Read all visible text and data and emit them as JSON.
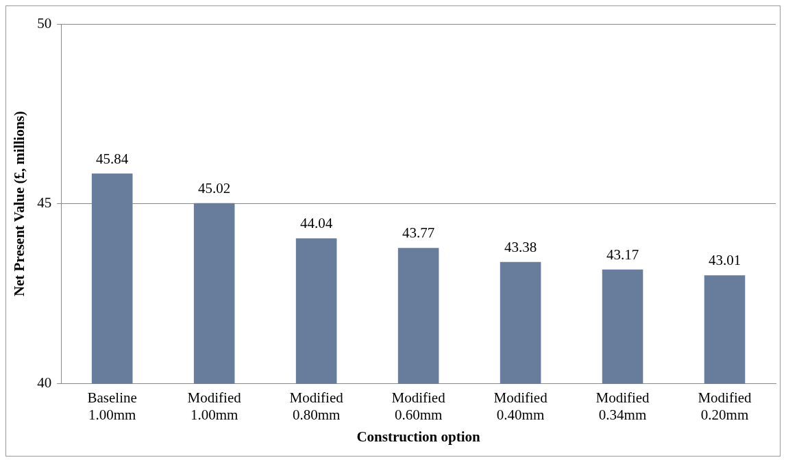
{
  "chart_data": {
    "type": "bar",
    "xlabel": "Construction option",
    "ylabel": "Net Present Value (£, millions)",
    "categories": [
      "Baseline 1.00mm",
      "Modified 1.00mm",
      "Modified 0.80mm",
      "Modified 0.60mm",
      "Modified 0.40mm",
      "Modified 0.34mm",
      "Modified 0.20mm"
    ],
    "values": [
      45.84,
      45.02,
      44.04,
      43.77,
      43.38,
      43.17,
      43.01
    ],
    "color": "#687d9c",
    "ylim": [
      40,
      50
    ],
    "yticks": [
      40,
      45,
      50
    ],
    "grid": "y",
    "data_labels": true,
    "legend": false
  }
}
